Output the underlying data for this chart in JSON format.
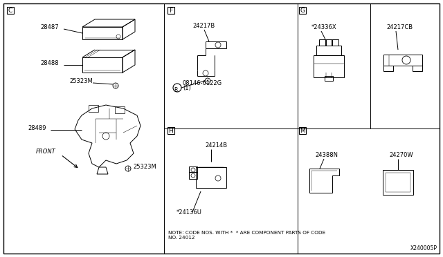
{
  "bg_color": "#ffffff",
  "lw": 0.7,
  "fs": 6.0,
  "fs_section": 7.5,
  "sections": [
    "C",
    "F",
    "G",
    "H",
    "M"
  ],
  "dividers": {
    "vertical_main": 237,
    "vertical_g": 430,
    "vertical_g2": 535,
    "horizontal_mid": 186,
    "vertical_hm": 430
  },
  "note": "NOTE: CODE NOS. WITH *  * ARE COMPONENT PARTS OF CODE\nNO. 24012",
  "diagram_id": "X240005P"
}
